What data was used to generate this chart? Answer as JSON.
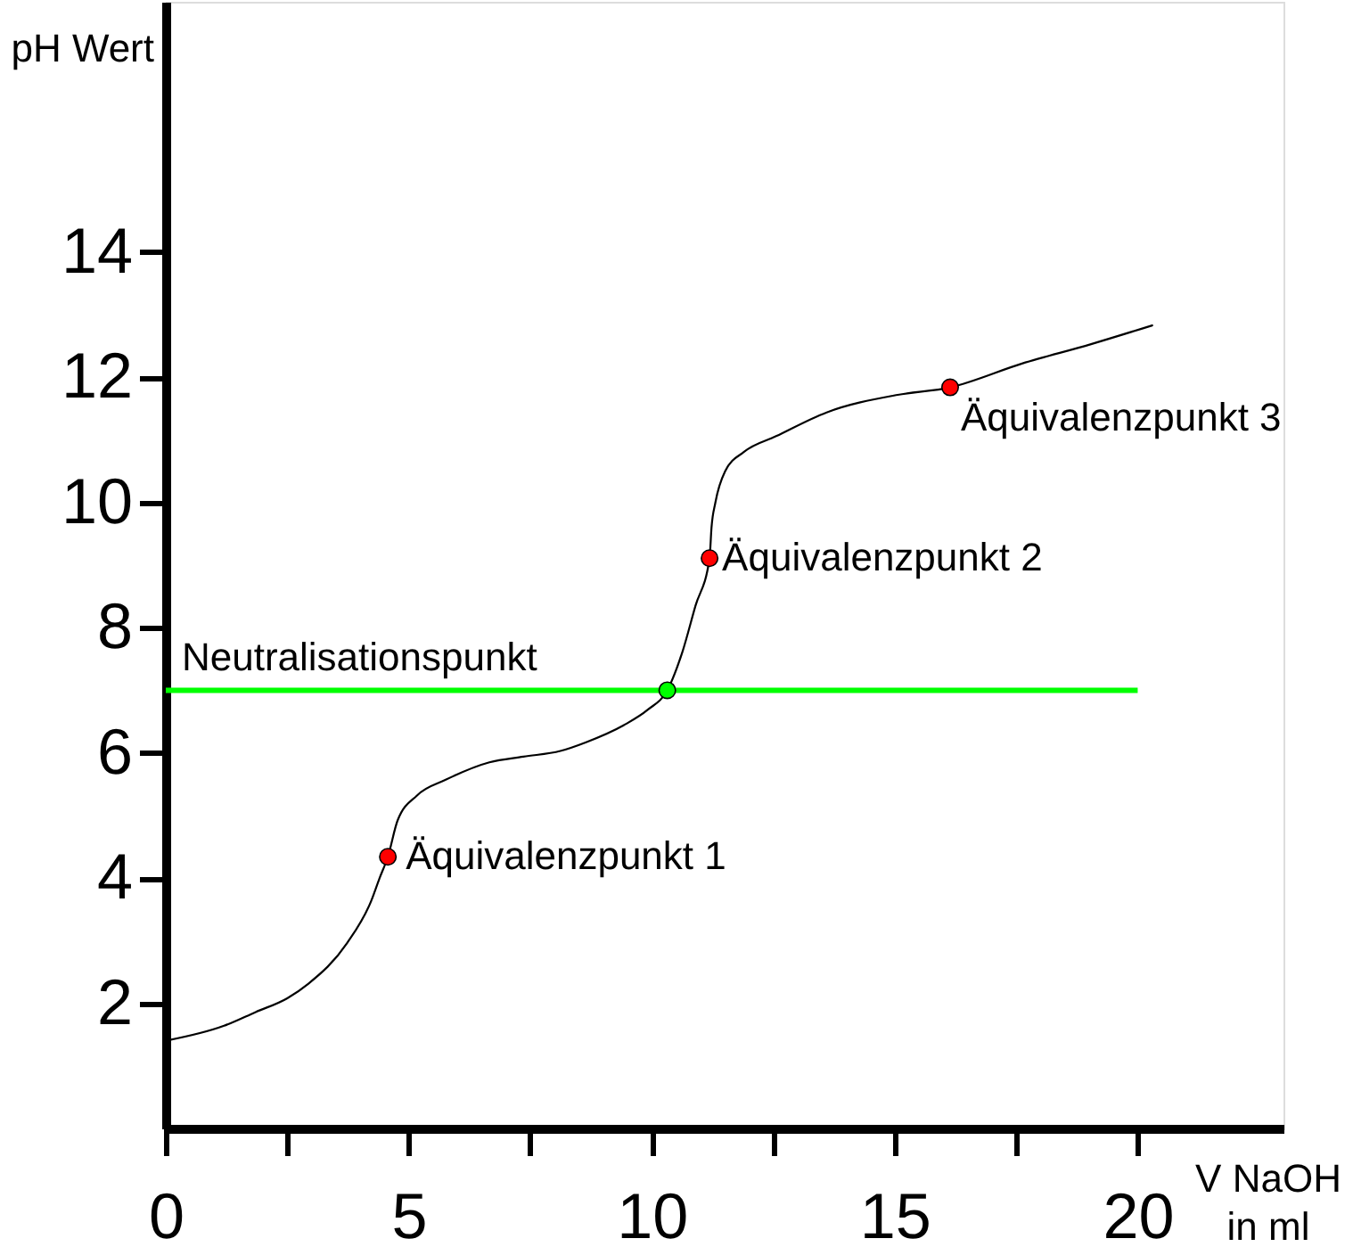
{
  "chart_data": {
    "type": "line",
    "xlabel": "V NaOH in ml",
    "ylabel": "pH Wert",
    "series": [
      {
        "color": "#000000",
        "x": [
          0,
          1.2,
          1.85,
          2.5,
          2.93,
          3.73,
          4.23,
          4.4,
          4.57,
          4.77,
          5.17,
          5.76,
          6.66,
          7.36,
          8.12,
          8.65,
          9.42,
          9.92,
          10.32,
          10.63,
          10.9,
          11.19,
          11.23,
          11.31,
          11.51,
          11.9,
          12.56,
          13.6,
          15.06,
          16.14,
          17.62,
          19.04,
          20.3
        ],
        "values": [
          1.4,
          1.64,
          1.86,
          2.08,
          2.31,
          2.96,
          3.64,
          4.0,
          4.34,
          4.92,
          5.32,
          5.57,
          5.85,
          5.94,
          6.03,
          6.17,
          6.44,
          6.69,
          7.0,
          7.61,
          8.35,
          9.11,
          9.6,
          10.0,
          10.5,
          10.81,
          11.06,
          11.44,
          11.72,
          11.84,
          12.22,
          12.53,
          12.83
        ]
      },
      {
        "type": "scatter",
        "marker": "circle",
        "x": [
          4.57,
          10.32,
          11.19,
          16.14
        ],
        "values": [
          4.34,
          7.0,
          9.11,
          11.84
        ],
        "colors": [
          "#ff0000",
          "#00ff00",
          "#ff0000",
          "#ff0000"
        ]
      }
    ],
    "xlim": [
      0,
      23
    ],
    "ylim": [
      0,
      18
    ],
    "xticks": [
      0,
      {
        "value": 2.5,
        "label": null
      },
      5,
      {
        "value": 7.5,
        "label": null
      },
      10,
      {
        "value": 12.5,
        "label": null
      },
      15,
      {
        "value": 17.5,
        "label": null
      },
      20
    ],
    "yticks": [
      2,
      4,
      6,
      8,
      10,
      12,
      14
    ],
    "ref_lines": [
      {
        "axis": "y",
        "value": 7,
        "label": "Neutralisationspunkt",
        "color": "#00ff00"
      }
    ],
    "annotations": [
      {
        "text": "Äquivalenzpunkt 1",
        "x": 4.57,
        "y": 4.34
      },
      {
        "text": "Äquivalenzpunkt 2",
        "x": 11.19,
        "y": 9.11
      },
      {
        "text": "Äquivalenzpunkt 3",
        "x": 16.14,
        "y": 11.84
      }
    ]
  }
}
